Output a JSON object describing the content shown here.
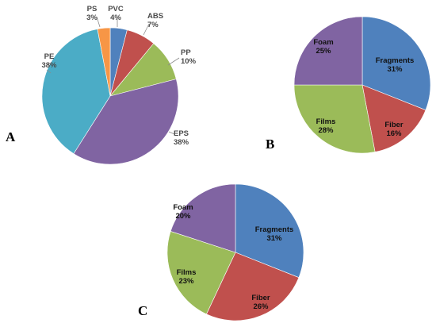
{
  "chart_data": [
    {
      "type": "pie",
      "panel": "A",
      "slices": [
        {
          "label": "PVC",
          "value": 4,
          "value_label": "4%",
          "color": "#4F81BD"
        },
        {
          "label": "ABS",
          "value": 7,
          "value_label": "7%",
          "color": "#C0504D"
        },
        {
          "label": "PP",
          "value": 10,
          "value_label": "10%",
          "color": "#9BBB59"
        },
        {
          "label": "EPS",
          "value": 38,
          "value_label": "38%",
          "color": "#8064A2"
        },
        {
          "label": "PE",
          "value": 38,
          "value_label": "38%",
          "color": "#4BACC6"
        },
        {
          "label": "PS",
          "value": 3,
          "value_label": "3%",
          "color": "#F79646"
        }
      ]
    },
    {
      "type": "pie",
      "panel": "B",
      "slices": [
        {
          "label": "Fragments",
          "value": 31,
          "value_label": "31%",
          "color": "#4F81BD"
        },
        {
          "label": "Fiber",
          "value": 16,
          "value_label": "16%",
          "color": "#C0504D"
        },
        {
          "label": "Films",
          "value": 28,
          "value_label": "28%",
          "color": "#9BBB59"
        },
        {
          "label": "Foam",
          "value": 25,
          "value_label": "25%",
          "color": "#8064A2"
        }
      ]
    },
    {
      "type": "pie",
      "panel": "C",
      "slices": [
        {
          "label": "Fragments",
          "value": 31,
          "value_label": "31%",
          "color": "#4F81BD"
        },
        {
          "label": "Fiber",
          "value": 26,
          "value_label": "26%",
          "color": "#C0504D"
        },
        {
          "label": "Films",
          "value": 23,
          "value_label": "23%",
          "color": "#9BBB59"
        },
        {
          "label": "Foam",
          "value": 20,
          "value_label": "20%",
          "color": "#8064A2"
        }
      ]
    }
  ]
}
